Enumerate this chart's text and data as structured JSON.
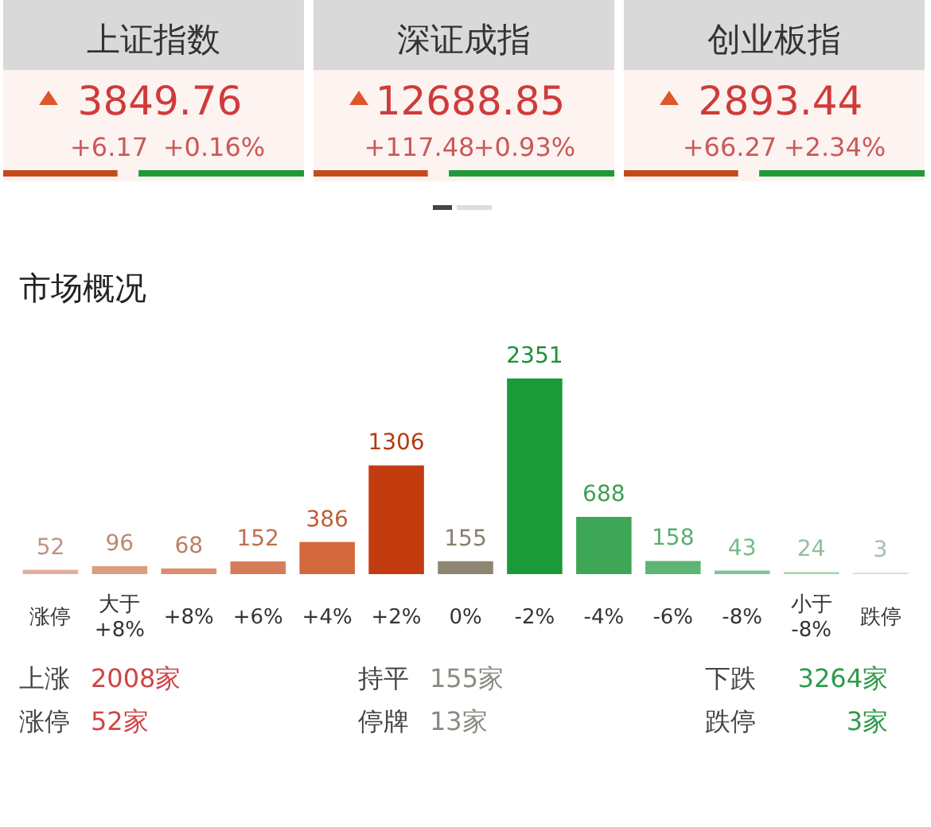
{
  "chart_data": [
    {
      "type": "other",
      "annotations": [
        "上证指数",
        "3849.76",
        "+6.17",
        "+0.16%",
        "深证成指",
        "12688.85",
        "+117.48",
        "+0.93%",
        "创业板指",
        "2893.44",
        "+66.27",
        "+2.34%"
      ]
    },
    {
      "type": "bar",
      "title": "市场概况",
      "categories": [
        "涨停",
        "大于 +8%",
        "+8%",
        "+6%",
        "+4%",
        "+2%",
        "0%",
        "-2%",
        "-4%",
        "-6%",
        "-8%",
        "小于 -8%",
        "跌停"
      ],
      "values": [
        52,
        96,
        68,
        152,
        386,
        1306,
        155,
        2351,
        688,
        158,
        43,
        24,
        3
      ],
      "colors": [
        "#e2b09a",
        "#dc9c80",
        "#d98f70",
        "#d57c58",
        "#d2683c",
        "#c23c10",
        "#8c8672",
        "#1b9a37",
        "#3ea757",
        "#5db675",
        "#7ec592",
        "#a3d5b0",
        "#cfe6d4"
      ],
      "data_labels": true,
      "annotations": [
        "上涨",
        "2008家",
        "持平",
        "155家",
        "下跌",
        "3264家",
        "涨停",
        "52家",
        "停牌",
        "13家",
        "跌停",
        "3家"
      ]
    }
  ]
}
